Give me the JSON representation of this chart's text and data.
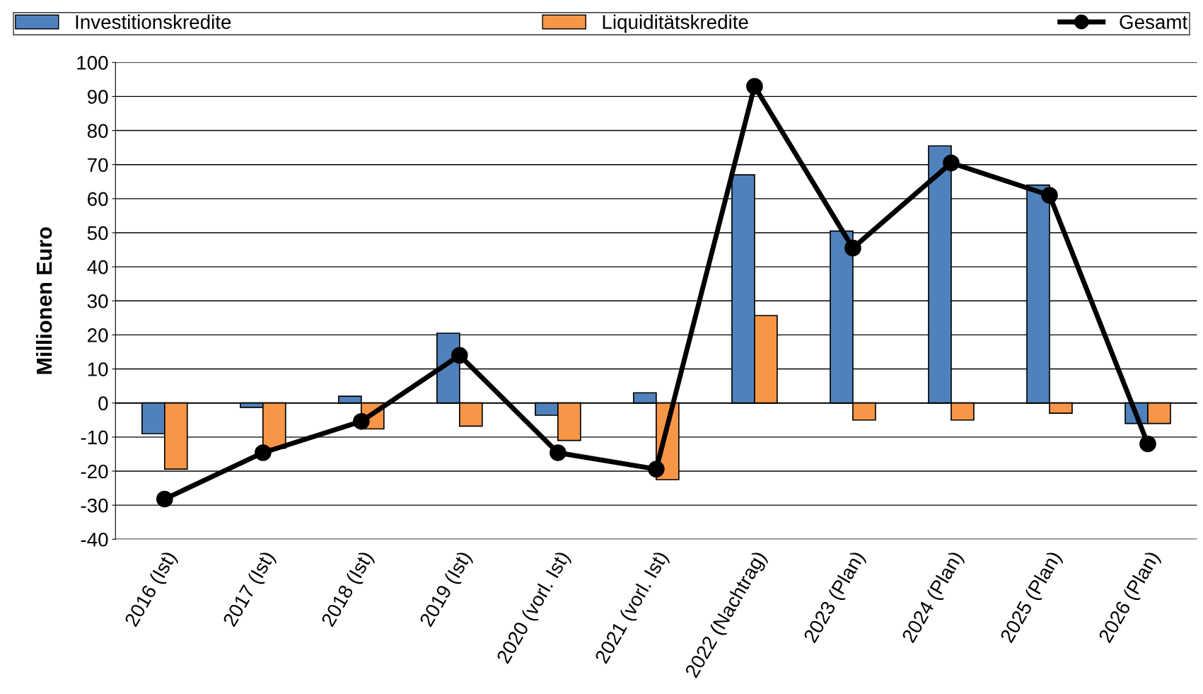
{
  "chart_data": {
    "type": "bar",
    "ylabel": "Millionen Euro",
    "categories": [
      "2016 (Ist)",
      "2017 (Ist)",
      "2018 (Ist)",
      "2019 (Ist)",
      "2020 (vorl. Ist)",
      "2021 (vorl. Ist)",
      "2022 (Nachtrag)",
      "2023 (Plan)",
      "2024 (Plan)",
      "2025 (Plan)",
      "2026 (Plan)"
    ],
    "series": [
      {
        "name": "Investitionskredite",
        "color": "#4f81bd",
        "values": [
          -9,
          -1.3,
          2,
          20.5,
          -3.6,
          3,
          67,
          50.5,
          75.5,
          64,
          -6
        ]
      },
      {
        "name": "Liquiditätskredite",
        "color": "#f79646",
        "values": [
          -19.4,
          -13.3,
          -7.6,
          -6.8,
          -11,
          -22.5,
          25.7,
          -5,
          -5,
          -3,
          -6
        ]
      },
      {
        "name": "Gesamt",
        "type": "line",
        "color": "#000000",
        "values": [
          -28.2,
          -14.6,
          -5.4,
          14,
          -14.6,
          -19.4,
          93,
          45.5,
          70.5,
          61,
          -12
        ]
      }
    ],
    "ylim": [
      -40,
      100
    ],
    "yticks": [
      -40,
      -30,
      -20,
      -10,
      0,
      10,
      20,
      30,
      40,
      50,
      60,
      70,
      80,
      90,
      100
    ],
    "grid": "y",
    "legend": "top",
    "marker": "circle",
    "line_style": "solid"
  }
}
